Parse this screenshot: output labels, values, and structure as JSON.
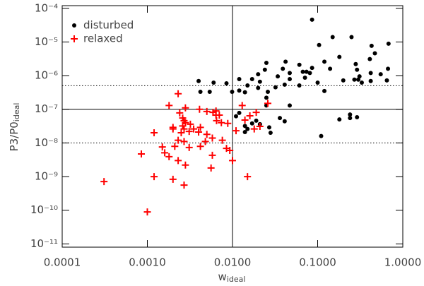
{
  "chart_data": {
    "type": "scatter",
    "xlabel": "w",
    "xlabel_sub": "ideal",
    "ylabel": "P3/P0",
    "ylabel_sub": "ideal",
    "xscale": "log",
    "yscale": "log",
    "xlim": [
      0.0001,
      1
    ],
    "ylim": [
      8e-12,
      0.00012
    ],
    "xticks": [
      {
        "value": 0.0001,
        "label": "0.0001"
      },
      {
        "value": 0.001,
        "label": "0.0010"
      },
      {
        "value": 0.01,
        "label": "0.0100"
      },
      {
        "value": 0.1,
        "label": "0.1000"
      },
      {
        "value": 1,
        "label": "1.0000"
      }
    ],
    "yticks": [
      {
        "value": 0.0001,
        "label": "10⁻⁴"
      },
      {
        "value": 1e-05,
        "label": "10⁻⁵"
      },
      {
        "value": 1e-06,
        "label": "10⁻⁶"
      },
      {
        "value": 1e-07,
        "label": "10⁻⁷"
      },
      {
        "value": 1e-08,
        "label": "10⁻⁸"
      },
      {
        "value": 1e-09,
        "label": "10⁻⁹"
      },
      {
        "value": 1e-10,
        "label": "10⁻¹⁰"
      },
      {
        "value": 1e-11,
        "label": "10⁻¹¹"
      }
    ],
    "hlines": [
      {
        "value": 1e-07,
        "style": "solid"
      },
      {
        "value": 5e-07,
        "style": "dotted"
      },
      {
        "value": 1e-08,
        "style": "dotted"
      }
    ],
    "vlines": [
      {
        "value": 0.01,
        "style": "solid"
      }
    ],
    "legend": "upper left",
    "series": [
      {
        "name": "disturbed",
        "color": "#000000",
        "marker": "circle",
        "x": [
          0.086,
          0.15,
          0.25,
          0.104,
          0.68,
          0.43,
          0.47,
          0.18,
          0.042,
          0.41,
          0.12,
          0.025,
          0.061,
          0.28,
          0.086,
          0.14,
          0.039,
          0.024,
          0.29,
          0.67,
          0.067,
          0.047,
          0.074,
          0.081,
          0.42,
          0.02,
          0.31,
          0.55,
          0.034,
          0.3,
          0.42,
          0.071,
          0.047,
          0.012,
          0.017,
          0.061,
          0.33,
          0.015,
          0.2,
          0.02,
          0.021,
          0.1,
          0.006,
          0.0085,
          0.65,
          0.27,
          0.012,
          0.032,
          0.0099,
          0.004,
          0.0054,
          0.0042,
          0.12,
          0.041,
          0.025,
          0.026,
          0.014,
          0.047,
          0.011,
          0.012,
          0.019,
          0.017,
          0.021,
          0.014,
          0.015,
          0.014,
          0.027,
          0.028,
          0.18,
          0.24,
          0.24,
          0.29,
          0.041,
          0.11,
          0.025,
          0.036
        ],
        "y": [
          4.6e-05,
          1.4e-05,
          1.4e-05,
          8.1e-06,
          8.9e-06,
          7.7e-06,
          4.6e-06,
          3.6e-06,
          2.6e-06,
          3.1e-06,
          2.6e-06,
          2.4e-06,
          2.1e-06,
          2.2e-06,
          1.7e-06,
          1.6e-06,
          1.6e-06,
          1.5e-06,
          1.5e-06,
          1.6e-06,
          1.3e-06,
          1.2e-06,
          1.3e-06,
          1.2e-06,
          1.2e-06,
          1.1e-06,
          9.5e-07,
          1.1e-06,
          9.5e-07,
          7.6e-07,
          6.9e-07,
          8.7e-07,
          7.9e-07,
          7.9e-07,
          7.9e-07,
          5.1e-07,
          6.2e-07,
          5.1e-07,
          7.2e-07,
          4.3e-07,
          6.6e-07,
          6.2e-07,
          6.2e-07,
          5.9e-07,
          7.2e-07,
          7.6e-07,
          3.6e-07,
          4.5e-07,
          3.3e-07,
          6.9e-07,
          3.3e-07,
          3.3e-07,
          3.5e-07,
          5.4e-07,
          2.2e-07,
          3.3e-07,
          3.2e-07,
          1.3e-07,
          6.2e-08,
          7.8e-08,
          4.6e-08,
          3.8e-08,
          3.6e-08,
          3.2e-08,
          2.6e-08,
          2.1e-08,
          2.9e-08,
          2e-08,
          5e-08,
          5.5e-08,
          7e-08,
          5.8e-08,
          4.4e-08,
          1.6e-08,
          1.3e-07,
          5.5e-08
        ]
      },
      {
        "name": "relaxed",
        "color": "#ff0000",
        "marker": "plus",
        "x": [
          0.0023,
          0.0018,
          0.0024,
          0.0026,
          0.0027,
          0.0028,
          0.0028,
          0.0059,
          0.0064,
          0.0064,
          0.007,
          0.0041,
          0.005,
          0.0065,
          0.0074,
          0.0088,
          0.014,
          0.016,
          0.019,
          0.026,
          0.018,
          0.021,
          0.002,
          0.0026,
          0.0027,
          0.0032,
          0.0035,
          0.0042,
          0.002,
          0.0025,
          0.0023,
          0.0027,
          0.0031,
          0.004,
          0.005,
          0.0058,
          0.0076,
          0.011,
          0.0048,
          0.0085,
          0.0015,
          0.0021,
          0.0031,
          0.0042,
          0.0016,
          0.0018,
          0.0058,
          0.0023,
          0.0028,
          0.0056,
          0.0093,
          0.01,
          0.00085,
          0.0012,
          0.0027,
          0.002,
          0.0012,
          0.00031,
          0.001,
          0.015,
          0.013
        ],
        "y": [
          2.9e-07,
          1.3e-07,
          7.8e-08,
          5.5e-08,
          4.6e-08,
          4e-08,
          1.1e-07,
          8.1e-08,
          8.9e-08,
          6.7e-08,
          6.7e-08,
          1e-07,
          8.6e-08,
          4.6e-08,
          4e-08,
          3.8e-08,
          4.8e-08,
          6.4e-08,
          8.1e-08,
          1.5e-07,
          2.6e-08,
          3.1e-08,
          2.9e-08,
          3.2e-08,
          2.6e-08,
          3.6e-08,
          2.6e-08,
          2.9e-08,
          2.6e-08,
          2e-08,
          1.2e-08,
          1.1e-08,
          2.2e-08,
          2.1e-08,
          1.8e-08,
          1.4e-08,
          1.2e-08,
          2.3e-08,
          1.1e-08,
          6.9e-09,
          7.6e-09,
          7.9e-09,
          7.3e-09,
          7.9e-09,
          5.1e-09,
          3.9e-09,
          4.3e-09,
          3e-09,
          2.2e-09,
          1.8e-09,
          6e-09,
          3e-09,
          4.7e-09,
          2e-08,
          5.6e-10,
          8.3e-10,
          1e-09,
          7.1e-10,
          8.9e-11,
          1e-09,
          1.3e-07
        ]
      }
    ]
  }
}
